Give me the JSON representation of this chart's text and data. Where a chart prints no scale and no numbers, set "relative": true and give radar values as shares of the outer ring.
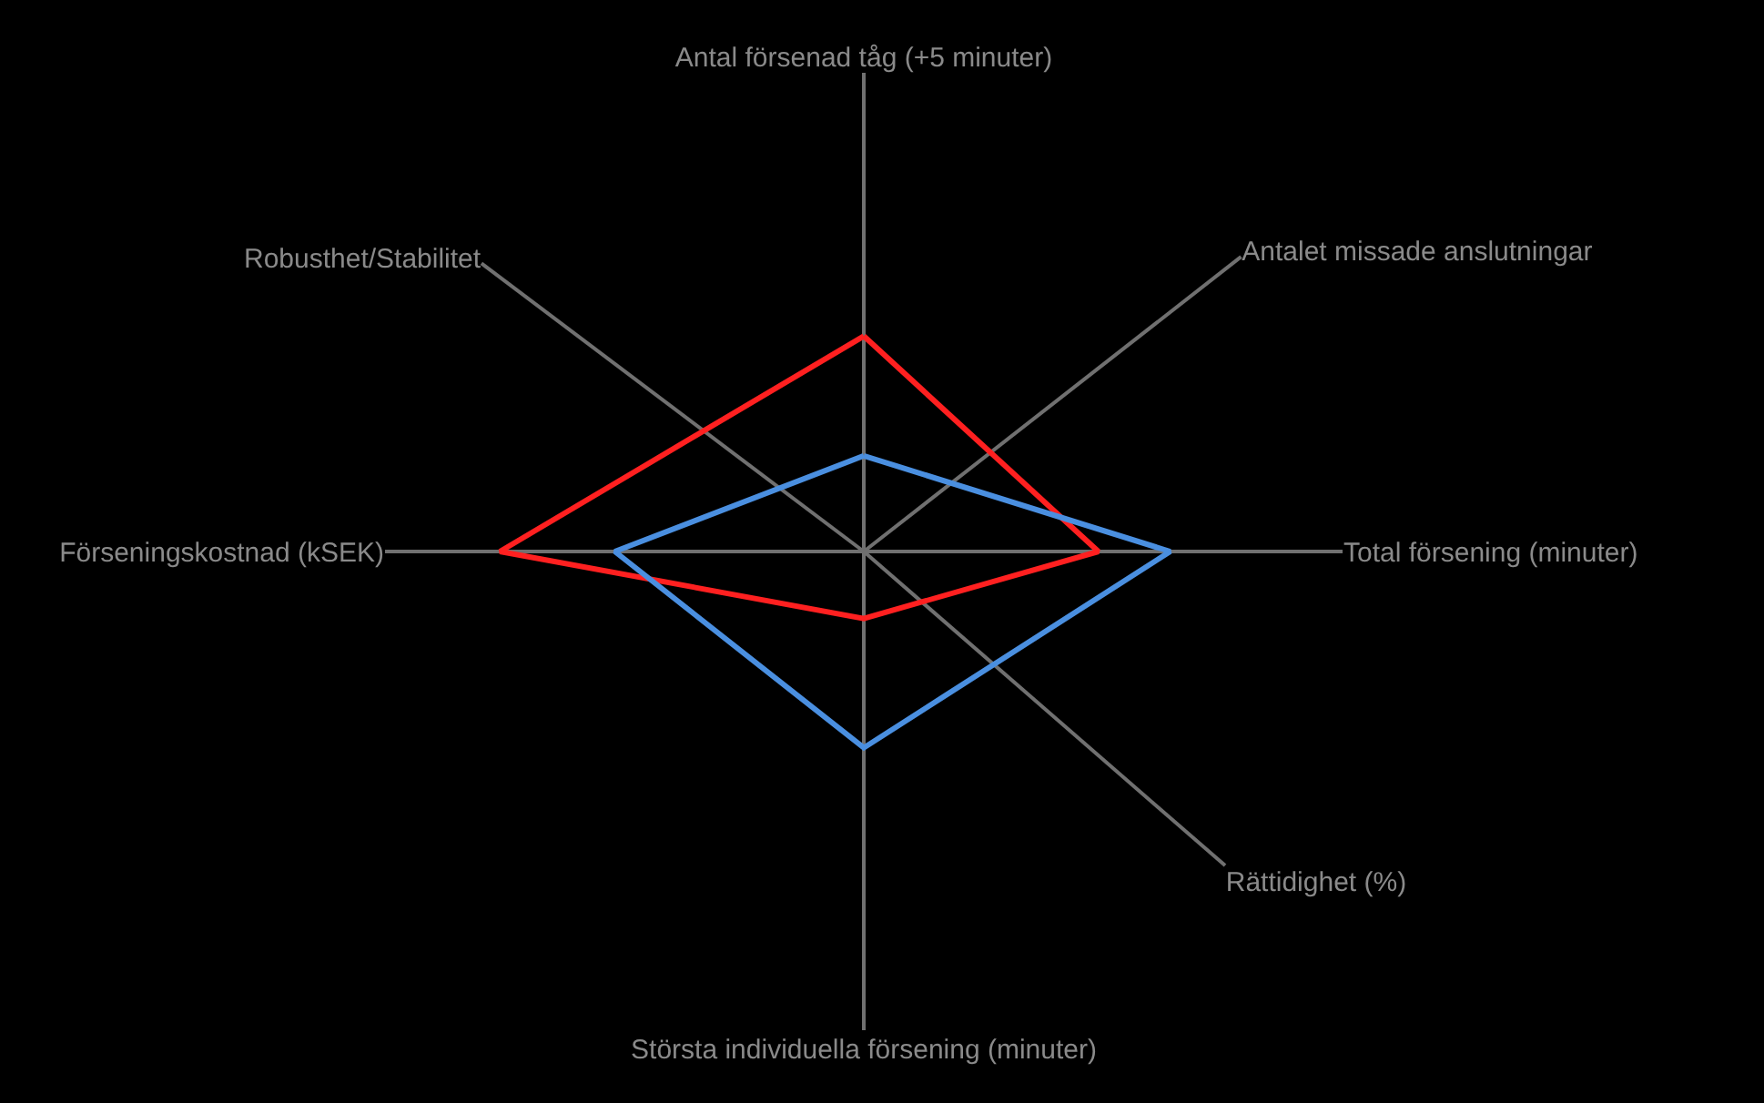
{
  "chart_data": {
    "type": "radar",
    "relative": true,
    "categories": [
      "Antal försenad tåg (+5 minuter)",
      "Antalet missade anslutningar",
      "Total försening (minuter)",
      "Rättidighet (%)",
      "Största individuella försening (minuter)",
      "Förseningskostnad (kSEK)",
      "Robusthet/Stabilitet"
    ],
    "series": [
      {
        "color": "#ff2020",
        "values": [
          0.45,
          null,
          0.49,
          null,
          0.14,
          0.76,
          null
        ]
      },
      {
        "color": "#4a8fe0",
        "values": [
          0.2,
          null,
          0.64,
          null,
          0.41,
          0.52,
          null
        ]
      }
    ],
    "legend": false,
    "marker": "none",
    "line_style": "solid"
  }
}
